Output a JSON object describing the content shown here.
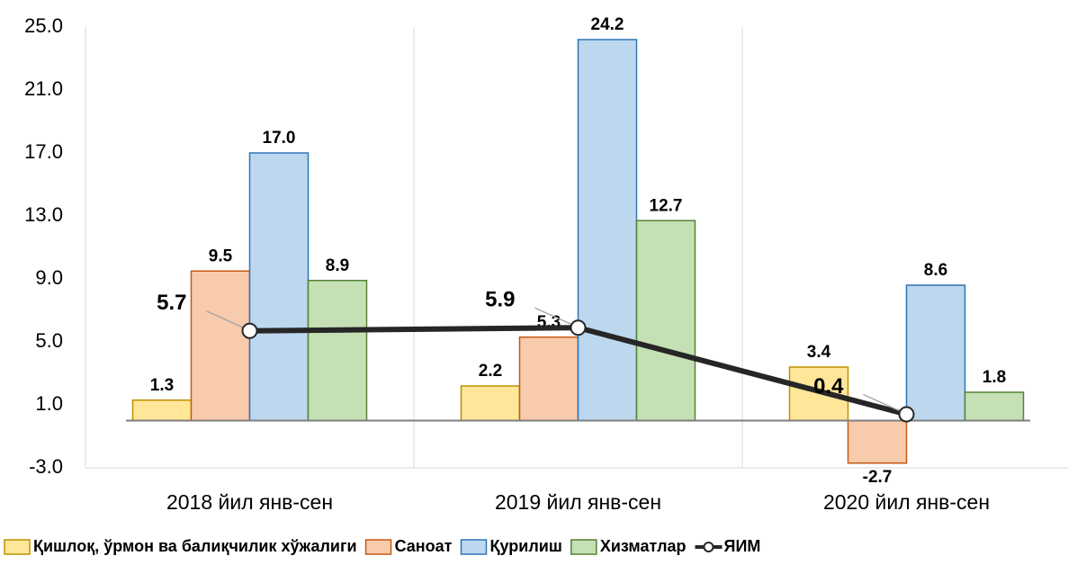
{
  "chart_data": {
    "type": "bar",
    "categories": [
      "2018 йил янв-сен",
      "2019 йил янв-сен",
      "2020 йил янв-сен"
    ],
    "series": [
      {
        "name": "Қишлоқ, ўрмон ва балиқчилик хўжалиги",
        "color": "#ffe699",
        "stroke": "#bf9000",
        "values": [
          1.3,
          2.2,
          3.4
        ],
        "value_labels": [
          "1.3",
          "2.2",
          "3.4"
        ]
      },
      {
        "name": "Саноат",
        "color": "#f8cbad",
        "stroke": "#c55a11",
        "values": [
          9.5,
          5.3,
          -2.7
        ],
        "value_labels": [
          "9.5",
          "5.3",
          "-2.7"
        ]
      },
      {
        "name": "Қурилиш",
        "color": "#bdd7ee",
        "stroke": "#2e75b6",
        "values": [
          17.0,
          24.2,
          8.6
        ],
        "value_labels": [
          "17.0",
          "24.2",
          "8.6"
        ]
      },
      {
        "name": "Хизматлар",
        "color": "#c5e0b4",
        "stroke": "#548235",
        "values": [
          8.9,
          12.7,
          1.8
        ],
        "value_labels": [
          "8.9",
          "12.7",
          "1.8"
        ]
      },
      {
        "name": "ЯИМ",
        "type": "line",
        "color": "#262626",
        "values": [
          5.7,
          5.9,
          0.4
        ],
        "value_labels": [
          "5.7",
          "5.9",
          "0.4"
        ]
      }
    ],
    "ylim": [
      -3,
      25
    ],
    "yticks": [
      {
        "value": -3,
        "label": "-3.0"
      },
      {
        "value": 1,
        "label": "1.0"
      },
      {
        "value": 5,
        "label": "5.0"
      },
      {
        "value": 9,
        "label": "9.0"
      },
      {
        "value": 13,
        "label": "13.0"
      },
      {
        "value": 17,
        "label": "17.0"
      },
      {
        "value": 21,
        "label": "21.0"
      },
      {
        "value": 25,
        "label": "25.0"
      }
    ],
    "grid": false,
    "legend": "bottom"
  }
}
